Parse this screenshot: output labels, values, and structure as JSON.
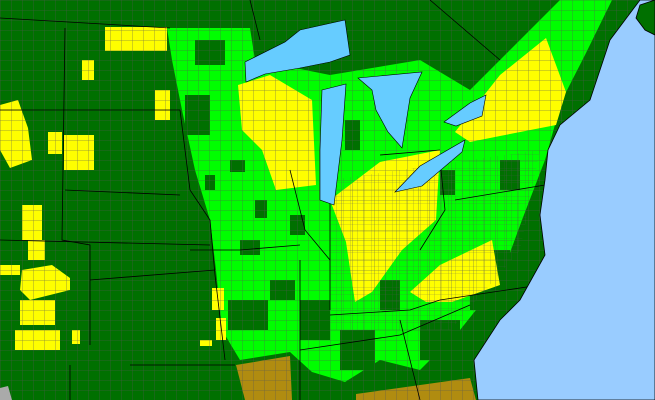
{
  "map": {
    "colors": {
      "base": "#007000",
      "category_bright": "#00ff00",
      "category_yellow": "#ffff00",
      "category_brown": "#b08c10",
      "ocean": "#99ccff",
      "lakes": "#66ccff",
      "county_lines": "#555555",
      "state_lines": "#000000"
    }
  }
}
